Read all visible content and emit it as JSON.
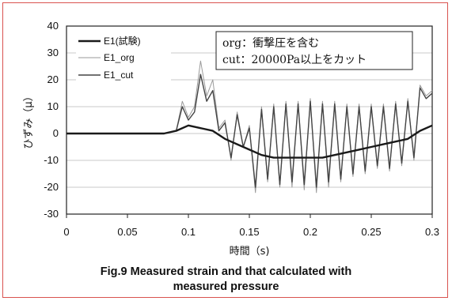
{
  "caption": {
    "line1": "Fig.9    Measured strain and that calculated with",
    "line2": "measured pressure"
  },
  "chart_data": {
    "type": "line",
    "xlabel": "時間（s)",
    "ylabel": "ひずみ（μ）",
    "xlim": [
      0,
      0.3
    ],
    "ylim": [
      -30,
      40
    ],
    "x_ticks": [
      "0",
      "0.05",
      "0.1",
      "0.15",
      "0.2",
      "0.25",
      "0.3"
    ],
    "y_ticks": [
      "40",
      "30",
      "20",
      "10",
      "0",
      "-10",
      "-20",
      "-30"
    ],
    "grid": "horizontal",
    "legend_position": "top-left",
    "annotation": [
      "org：衝撃圧を含む",
      "cut：20000Pa以上をカット"
    ],
    "series": [
      {
        "name": "E1(試験)",
        "color": "#1a1a1a",
        "x": [
          0,
          0.02,
          0.04,
          0.06,
          0.08,
          0.09,
          0.1,
          0.11,
          0.12,
          0.13,
          0.14,
          0.15,
          0.16,
          0.17,
          0.18,
          0.19,
          0.2,
          0.21,
          0.22,
          0.23,
          0.24,
          0.25,
          0.26,
          0.27,
          0.28,
          0.29,
          0.3
        ],
        "y": [
          0,
          0,
          0,
          0,
          0,
          1,
          3,
          2,
          1,
          -2,
          -4,
          -6,
          -8,
          -9,
          -9,
          -9,
          -9,
          -9,
          -8,
          -7,
          -6,
          -5,
          -4,
          -3,
          -2,
          1,
          3
        ]
      },
      {
        "name": "E1_org",
        "color": "#9a9a9a",
        "x": [
          0,
          0.02,
          0.04,
          0.06,
          0.08,
          0.09,
          0.095,
          0.1,
          0.105,
          0.11,
          0.115,
          0.12,
          0.125,
          0.13,
          0.135,
          0.14,
          0.145,
          0.15,
          0.155,
          0.16,
          0.165,
          0.17,
          0.175,
          0.18,
          0.185,
          0.19,
          0.195,
          0.2,
          0.205,
          0.21,
          0.215,
          0.22,
          0.225,
          0.23,
          0.235,
          0.24,
          0.245,
          0.25,
          0.255,
          0.26,
          0.265,
          0.27,
          0.275,
          0.28,
          0.285,
          0.29,
          0.295,
          0.3
        ],
        "y": [
          0,
          0,
          0,
          0,
          0,
          1,
          12,
          6,
          10,
          27,
          14,
          20,
          2,
          5,
          -10,
          8,
          -5,
          3,
          -22,
          10,
          -18,
          11,
          -20,
          12,
          -20,
          12,
          -21,
          13,
          -22,
          12,
          -20,
          12,
          -18,
          11,
          -16,
          11,
          -15,
          11,
          -13,
          11,
          -14,
          12,
          -12,
          13,
          -10,
          18,
          14,
          16
        ]
      },
      {
        "name": "E1_cut",
        "color": "#444444",
        "x": [
          0,
          0.02,
          0.04,
          0.06,
          0.08,
          0.09,
          0.095,
          0.1,
          0.105,
          0.11,
          0.115,
          0.12,
          0.125,
          0.13,
          0.135,
          0.14,
          0.145,
          0.15,
          0.155,
          0.16,
          0.165,
          0.17,
          0.175,
          0.18,
          0.185,
          0.19,
          0.195,
          0.2,
          0.205,
          0.21,
          0.215,
          0.22,
          0.225,
          0.23,
          0.235,
          0.24,
          0.245,
          0.25,
          0.255,
          0.26,
          0.265,
          0.27,
          0.275,
          0.28,
          0.285,
          0.29,
          0.295,
          0.3
        ],
        "y": [
          0,
          0,
          0,
          0,
          0,
          1,
          10,
          5,
          8,
          22,
          12,
          16,
          1,
          4,
          -9,
          7,
          -5,
          2,
          -20,
          9,
          -17,
          10,
          -19,
          11,
          -18,
          11,
          -19,
          12,
          -20,
          11,
          -18,
          11,
          -17,
          10,
          -15,
          10,
          -14,
          10,
          -12,
          10,
          -13,
          11,
          -11,
          12,
          -9,
          17,
          13,
          15
        ]
      }
    ]
  }
}
